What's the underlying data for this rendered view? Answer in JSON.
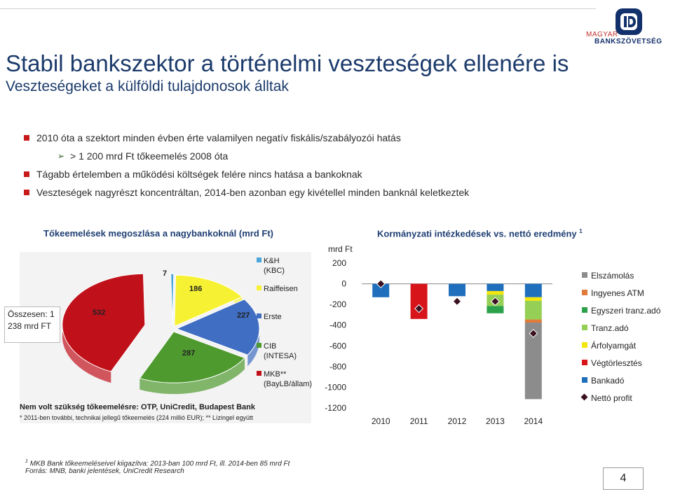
{
  "header": {
    "title": "Stabil bankszektor a történelmi veszteségek ellenére is",
    "subtitle": "Veszteségeket a külföldi tulajdonosok álltak",
    "logo_line1": "MAGYAR",
    "logo_line2": "BANKSZÖVETSÉG"
  },
  "bullets": [
    {
      "text": "2010 óta a szektort minden évben érte valamilyen negatív fiskális/szabályozói hatás",
      "level": 1
    },
    {
      "text": "> 1 200 mrd Ft tőkeemelés 2008 óta",
      "level": 2
    },
    {
      "text": "Tágabb értelemben a működési költségek felére nincs hatása a bankoknak",
      "level": 1
    },
    {
      "text": "Veszteségek nagyrészt koncentráltan, 2014-ben azonban egy kivétellel minden banknál keletkeztek",
      "level": 1
    }
  ],
  "chart_data": [
    {
      "type": "pie",
      "title": "Tőkeemelések megoszlása a nagybankoknál (mrd Ft)",
      "total_label": "Összesen: 1 238 mrd FT",
      "slices": [
        {
          "name": "K&H (KBC)",
          "value": 7,
          "color": "#4aa6d8"
        },
        {
          "name": "Raiffeisen",
          "value": 186,
          "color": "#f6f233"
        },
        {
          "name": "Erste",
          "value": 227,
          "color": "#3f6ec2"
        },
        {
          "name": "CIB (INTESA)",
          "value": 287,
          "color": "#4f9a2f"
        },
        {
          "name": "MKB** (BayLB/állam)",
          "value": 532,
          "color": "#c0111b"
        }
      ],
      "legend": [
        "K&H (KBC)",
        "Raiffeisen",
        "Erste",
        "CIB (INTESA)",
        "MKB** (BayLB/állam)"
      ],
      "note_bold": "Nem volt szükség tőkeemelésre: OTP, UniCredit, Budapest Bank",
      "note": "* 2011-ben további, technikai jellegű tőkeemelés (224 millió EUR); ** Lízingel együtt"
    },
    {
      "type": "bar",
      "title": "Kormányzati intézkedések vs. nettó eredmény",
      "title_sup": "1",
      "ylabel": "mrd Ft",
      "ylim": [
        -1200,
        200
      ],
      "yticks": [
        "200",
        "0",
        "-200",
        "-400",
        "-600",
        "-800",
        "-1000",
        "-1200"
      ],
      "categories": [
        "2010",
        "2011",
        "2012",
        "2013",
        "2014"
      ],
      "series": [
        {
          "name": "Elszámolás",
          "color": "#8c8c8c",
          "values": [
            0,
            0,
            0,
            0,
            -740
          ]
        },
        {
          "name": "Ingyenes ATM",
          "color": "#e07b39",
          "values": [
            0,
            0,
            0,
            0,
            -30
          ]
        },
        {
          "name": "Egyszeri tranz.adó",
          "color": "#2ca24a",
          "values": [
            0,
            0,
            0,
            -70,
            0
          ]
        },
        {
          "name": "Tranz.adó",
          "color": "#96cf56",
          "values": [
            0,
            0,
            0,
            -110,
            -180
          ]
        },
        {
          "name": "Árfolyamgát",
          "color": "#f2e60c",
          "values": [
            0,
            0,
            0,
            -35,
            -35
          ]
        },
        {
          "name": "Végtörlesztés",
          "color": "#d8141b",
          "values": [
            0,
            -340,
            0,
            0,
            0
          ]
        },
        {
          "name": "Bankadó",
          "color": "#1f6fbd",
          "values": [
            -130,
            0,
            -120,
            -70,
            -130
          ]
        }
      ],
      "net_profit": {
        "name": "Nettó profit",
        "values": [
          0,
          -240,
          -170,
          -170,
          -480
        ]
      }
    }
  ],
  "footnote": {
    "line1_sup": "1",
    "line1": "MKB Bank tőkeemeléseivel kiigazítva: 2013-ban 100 mrd Ft, ill. 2014-ben 85 mrd Ft",
    "line2": "Forrás: MNB, banki jelentések, UniCredit Research"
  },
  "page_number": "4"
}
